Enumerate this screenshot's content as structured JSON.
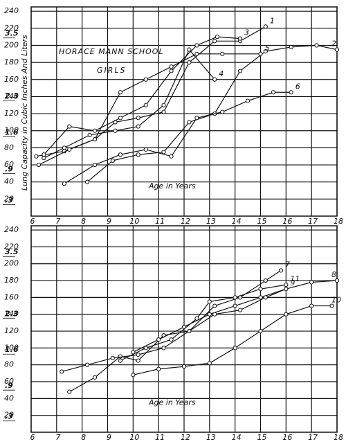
{
  "chart_data": [
    {
      "type": "line",
      "title": "HORACE MANN SCHOOL",
      "subtitle": "GIRLS",
      "y_label": "Lung Capacity in Cubic Inches And Liters",
      "x_label": "Age in Years",
      "xlim": [
        6,
        18
      ],
      "xticks": [
        6,
        7,
        8,
        9,
        10,
        11,
        12,
        13,
        14,
        15,
        16,
        17,
        18
      ],
      "ylim": [
        0,
        245
      ],
      "yticks": [
        20,
        40,
        60,
        80,
        100,
        120,
        140,
        160,
        180,
        200,
        220,
        240
      ],
      "y2lim": [
        0,
        4.015
      ],
      "y2ticks": [
        {
          "value": 0.3,
          "label": ".3"
        },
        {
          "value": 0.9,
          "label": ".9"
        },
        1.6,
        2.3,
        3.5
      ],
      "grid": true,
      "color": "#111111",
      "series": [
        {
          "name": "1",
          "x": [
            6.2,
            7.3,
            8.5,
            9.3,
            10.2,
            11.2,
            12.2,
            13.2,
            14.2,
            15.2
          ],
          "values": [
            70,
            76,
            90,
            110,
            115,
            122,
            180,
            205,
            205,
            222
          ]
        },
        {
          "name": "2",
          "x": [
            8.2,
            9.2,
            10.2,
            11.2,
            12.2,
            13.2,
            14.2,
            15.2,
            16.2,
            17.2,
            18
          ],
          "values": [
            40,
            65,
            72,
            75,
            110,
            120,
            170,
            193,
            198,
            200,
            195
          ]
        },
        {
          "name": "3",
          "x": [
            6.5,
            7.5,
            8.5,
            9.5,
            10.5,
            11.5,
            12.5,
            13.3,
            14.2
          ],
          "values": [
            72,
            105,
            100,
            115,
            130,
            170,
            200,
            210,
            208
          ]
        },
        {
          "name": "4",
          "x": [
            6.5,
            7.3,
            8.3,
            9.3,
            10.2,
            11.2,
            12.2,
            13.2
          ],
          "values": [
            68,
            80,
            95,
            100,
            105,
            130,
            195,
            160
          ]
        },
        {
          "name": "5",
          "x": [
            6.3,
            7.5,
            8.5,
            9.5,
            10.5,
            11.5,
            12.5,
            13.5,
            15
          ],
          "values": [
            60,
            78,
            90,
            145,
            160,
            175,
            190,
            190,
            190
          ]
        },
        {
          "name": "6",
          "x": [
            7.3,
            8.5,
            9.5,
            10.5,
            11.5,
            12.5,
            13.5,
            14.5,
            15.5,
            16.2
          ],
          "values": [
            38,
            60,
            72,
            78,
            70,
            115,
            122,
            135,
            145,
            145
          ]
        }
      ]
    },
    {
      "type": "line",
      "x_label": "Age in Years",
      "xlim": [
        6,
        18
      ],
      "xticks": [
        6,
        7,
        8,
        9,
        10,
        11,
        12,
        13,
        14,
        15,
        16,
        17,
        18
      ],
      "ylim": [
        0,
        245
      ],
      "yticks": [
        20,
        40,
        60,
        80,
        100,
        120,
        140,
        160,
        180,
        200,
        220,
        240
      ],
      "y2lim": [
        0,
        4.015
      ],
      "y2ticks": [
        {
          "value": 0.3,
          "label": ".3"
        },
        {
          "value": 0.9,
          "label": ".9"
        },
        1.6,
        2.3,
        3.5
      ],
      "grid": true,
      "color": "#111111",
      "series": [
        {
          "name": "7",
          "x": [
            7.5,
            8.5,
            9.5,
            10.2,
            11.2,
            12.2,
            13.2,
            14.2,
            15.2,
            15.8
          ],
          "values": [
            48,
            65,
            90,
            85,
            115,
            120,
            150,
            160,
            180,
            192
          ]
        },
        {
          "name": "8",
          "x": [
            10,
            11,
            12,
            13,
            14,
            15,
            16,
            17,
            18
          ],
          "values": [
            95,
            110,
            125,
            140,
            150,
            160,
            170,
            178,
            180
          ]
        },
        {
          "name": "9",
          "x": [
            7.2,
            8.2,
            9.2,
            10.2,
            11.2,
            12.2,
            13.2,
            14.2,
            15.2,
            16
          ],
          "values": [
            72,
            80,
            88,
            92,
            100,
            120,
            140,
            145,
            160,
            170
          ]
        },
        {
          "name": "10",
          "x": [
            10,
            11,
            12,
            13,
            14,
            15,
            16,
            17,
            17.8
          ],
          "values": [
            68,
            75,
            78,
            82,
            100,
            120,
            140,
            150,
            150
          ]
        },
        {
          "name": "11",
          "x": [
            9.5,
            10.5,
            11.5,
            12.5,
            13,
            14,
            15,
            16
          ],
          "values": [
            85,
            100,
            110,
            135,
            155,
            160,
            170,
            175
          ]
        }
      ]
    }
  ]
}
